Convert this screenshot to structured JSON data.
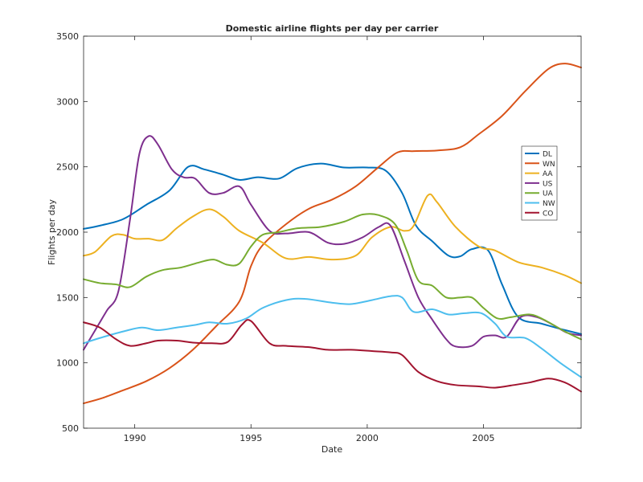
{
  "chart_data": {
    "type": "line",
    "title": "Domestic airline flights per day per carrier",
    "xlabel": "Date",
    "ylabel": "Flights per day",
    "xlim": [
      1987.8,
      2009.2
    ],
    "ylim": [
      500,
      3500
    ],
    "x_ticks": [
      1990,
      1995,
      2000,
      2005
    ],
    "y_ticks": [
      500,
      1000,
      1500,
      2000,
      2500,
      3000,
      3500
    ],
    "grid": false,
    "legend_position": "right",
    "series": [
      {
        "name": "DL",
        "color": "#0072BD",
        "points": [
          [
            1987.8,
            2025
          ],
          [
            1988.5,
            2050
          ],
          [
            1989.5,
            2100
          ],
          [
            1990.5,
            2210
          ],
          [
            1991.5,
            2320
          ],
          [
            1992.3,
            2500
          ],
          [
            1993,
            2480
          ],
          [
            1993.8,
            2440
          ],
          [
            1994.5,
            2400
          ],
          [
            1995.3,
            2420
          ],
          [
            1996.2,
            2410
          ],
          [
            1997,
            2490
          ],
          [
            1998,
            2525
          ],
          [
            1999,
            2495
          ],
          [
            2000,
            2495
          ],
          [
            2000.8,
            2470
          ],
          [
            2001.5,
            2300
          ],
          [
            2002.1,
            2050
          ],
          [
            2002.8,
            1930
          ],
          [
            2003.5,
            1820
          ],
          [
            2004,
            1815
          ],
          [
            2004.5,
            1870
          ],
          [
            2005.2,
            1860
          ],
          [
            2005.8,
            1600
          ],
          [
            2006.5,
            1350
          ],
          [
            2007.5,
            1300
          ],
          [
            2008.3,
            1260
          ],
          [
            2009.2,
            1220
          ]
        ]
      },
      {
        "name": "WN",
        "color": "#D95319",
        "points": [
          [
            1987.8,
            690
          ],
          [
            1988.6,
            730
          ],
          [
            1989.5,
            790
          ],
          [
            1990.5,
            860
          ],
          [
            1991.5,
            960
          ],
          [
            1992.5,
            1100
          ],
          [
            1993.5,
            1280
          ],
          [
            1994.5,
            1470
          ],
          [
            1995,
            1740
          ],
          [
            1995.5,
            1900
          ],
          [
            1996.5,
            2060
          ],
          [
            1997.5,
            2180
          ],
          [
            1998.5,
            2250
          ],
          [
            1999.5,
            2350
          ],
          [
            2000.5,
            2500
          ],
          [
            2001.3,
            2610
          ],
          [
            2002,
            2620
          ],
          [
            2003,
            2625
          ],
          [
            2004,
            2650
          ],
          [
            2004.8,
            2750
          ],
          [
            2005.8,
            2890
          ],
          [
            2006.8,
            3080
          ],
          [
            2007.8,
            3250
          ],
          [
            2008.5,
            3290
          ],
          [
            2009.2,
            3260
          ]
        ]
      },
      {
        "name": "AA",
        "color": "#EDB120",
        "points": [
          [
            1987.8,
            1820
          ],
          [
            1988.3,
            1850
          ],
          [
            1989,
            1970
          ],
          [
            1989.5,
            1980
          ],
          [
            1990,
            1950
          ],
          [
            1990.6,
            1950
          ],
          [
            1991.2,
            1940
          ],
          [
            1991.8,
            2030
          ],
          [
            1992.5,
            2120
          ],
          [
            1993.2,
            2175
          ],
          [
            1993.8,
            2120
          ],
          [
            1994.5,
            2010
          ],
          [
            1995.5,
            1920
          ],
          [
            1996.5,
            1800
          ],
          [
            1997.5,
            1810
          ],
          [
            1998.5,
            1790
          ],
          [
            1999.5,
            1820
          ],
          [
            2000.2,
            1960
          ],
          [
            2001,
            2040
          ],
          [
            2001.6,
            2010
          ],
          [
            2002,
            2050
          ],
          [
            2002.6,
            2280
          ],
          [
            2003,
            2230
          ],
          [
            2003.8,
            2040
          ],
          [
            2004.8,
            1890
          ],
          [
            2005.5,
            1860
          ],
          [
            2006.5,
            1770
          ],
          [
            2007.5,
            1730
          ],
          [
            2008.5,
            1670
          ],
          [
            2009.2,
            1610
          ]
        ]
      },
      {
        "name": "US",
        "color": "#7E2F8E",
        "points": [
          [
            1987.8,
            1100
          ],
          [
            1988.3,
            1250
          ],
          [
            1988.8,
            1400
          ],
          [
            1989.3,
            1550
          ],
          [
            1989.8,
            2100
          ],
          [
            1990.2,
            2600
          ],
          [
            1990.6,
            2735
          ],
          [
            1991,
            2670
          ],
          [
            1991.6,
            2480
          ],
          [
            1992.1,
            2420
          ],
          [
            1992.6,
            2410
          ],
          [
            1993.2,
            2300
          ],
          [
            1993.8,
            2300
          ],
          [
            1994.5,
            2350
          ],
          [
            1995,
            2210
          ],
          [
            1995.8,
            2010
          ],
          [
            1996.5,
            1990
          ],
          [
            1997.5,
            2000
          ],
          [
            1998.3,
            1920
          ],
          [
            1999,
            1910
          ],
          [
            1999.8,
            1960
          ],
          [
            2000.5,
            2040
          ],
          [
            2001,
            2050
          ],
          [
            2001.6,
            1780
          ],
          [
            2002.2,
            1500
          ],
          [
            2002.8,
            1330
          ],
          [
            2003.4,
            1180
          ],
          [
            2003.8,
            1125
          ],
          [
            2004.5,
            1130
          ],
          [
            2005,
            1200
          ],
          [
            2005.5,
            1210
          ],
          [
            2006,
            1200
          ],
          [
            2006.6,
            1350
          ],
          [
            2007.3,
            1350
          ],
          [
            2008,
            1290
          ],
          [
            2008.6,
            1230
          ],
          [
            2009.2,
            1210
          ]
        ]
      },
      {
        "name": "UA",
        "color": "#77AC30",
        "points": [
          [
            1987.8,
            1640
          ],
          [
            1988.5,
            1610
          ],
          [
            1989.2,
            1600
          ],
          [
            1989.8,
            1580
          ],
          [
            1990.5,
            1660
          ],
          [
            1991.2,
            1710
          ],
          [
            1992,
            1730
          ],
          [
            1992.8,
            1770
          ],
          [
            1993.4,
            1790
          ],
          [
            1994,
            1750
          ],
          [
            1994.5,
            1760
          ],
          [
            1995,
            1890
          ],
          [
            1995.5,
            1980
          ],
          [
            1996.2,
            2000
          ],
          [
            1997,
            2030
          ],
          [
            1998,
            2040
          ],
          [
            1999,
            2080
          ],
          [
            1999.8,
            2135
          ],
          [
            2000.5,
            2130
          ],
          [
            2001.2,
            2060
          ],
          [
            2001.7,
            1860
          ],
          [
            2002.2,
            1630
          ],
          [
            2002.8,
            1590
          ],
          [
            2003.4,
            1500
          ],
          [
            2004,
            1500
          ],
          [
            2004.5,
            1500
          ],
          [
            2005,
            1420
          ],
          [
            2005.6,
            1340
          ],
          [
            2006.2,
            1350
          ],
          [
            2007,
            1370
          ],
          [
            2007.6,
            1330
          ],
          [
            2008.5,
            1240
          ],
          [
            2009.2,
            1180
          ]
        ]
      },
      {
        "name": "NW",
        "color": "#4DBEEE",
        "points": [
          [
            1987.8,
            1150
          ],
          [
            1988.5,
            1190
          ],
          [
            1989.5,
            1240
          ],
          [
            1990.3,
            1270
          ],
          [
            1991,
            1250
          ],
          [
            1991.8,
            1270
          ],
          [
            1992.6,
            1290
          ],
          [
            1993.2,
            1310
          ],
          [
            1994,
            1300
          ],
          [
            1994.8,
            1340
          ],
          [
            1995.5,
            1420
          ],
          [
            1996.5,
            1480
          ],
          [
            1997.3,
            1490
          ],
          [
            1998.5,
            1460
          ],
          [
            1999.3,
            1450
          ],
          [
            2000.2,
            1480
          ],
          [
            2001,
            1510
          ],
          [
            2001.5,
            1500
          ],
          [
            2002,
            1390
          ],
          [
            2002.8,
            1410
          ],
          [
            2003.5,
            1370
          ],
          [
            2004.2,
            1380
          ],
          [
            2004.9,
            1380
          ],
          [
            2005.5,
            1300
          ],
          [
            2006,
            1200
          ],
          [
            2006.8,
            1190
          ],
          [
            2007.5,
            1110
          ],
          [
            2008.3,
            1000
          ],
          [
            2009.2,
            890
          ]
        ]
      },
      {
        "name": "CO",
        "color": "#A2142F",
        "points": [
          [
            1987.8,
            1310
          ],
          [
            1988.5,
            1270
          ],
          [
            1989.2,
            1180
          ],
          [
            1989.8,
            1130
          ],
          [
            1990.5,
            1150
          ],
          [
            1991,
            1170
          ],
          [
            1991.8,
            1170
          ],
          [
            1992.5,
            1155
          ],
          [
            1993.3,
            1150
          ],
          [
            1994,
            1160
          ],
          [
            1994.6,
            1290
          ],
          [
            1995,
            1320
          ],
          [
            1995.8,
            1150
          ],
          [
            1996.5,
            1130
          ],
          [
            1997.5,
            1120
          ],
          [
            1998.3,
            1100
          ],
          [
            1999.3,
            1100
          ],
          [
            2000.2,
            1090
          ],
          [
            2001,
            1080
          ],
          [
            2001.5,
            1060
          ],
          [
            2002.2,
            930
          ],
          [
            2003,
            860
          ],
          [
            2003.8,
            830
          ],
          [
            2004.8,
            820
          ],
          [
            2005.5,
            810
          ],
          [
            2006.3,
            830
          ],
          [
            2007,
            850
          ],
          [
            2007.8,
            880
          ],
          [
            2008.5,
            850
          ],
          [
            2009.2,
            780
          ]
        ]
      }
    ]
  }
}
